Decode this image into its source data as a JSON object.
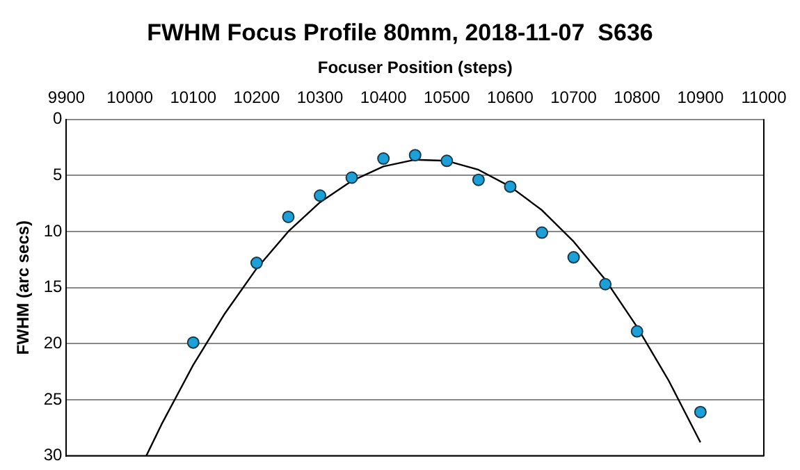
{
  "chart_data": {
    "type": "scatter",
    "title": "FWHM Focus Profile 80mm, 2018-11-07  S636",
    "xlabel": "Focuser Position (steps)",
    "ylabel": "FWHM (arc secs)",
    "xlim": [
      9900,
      11000
    ],
    "xticks": [
      9900,
      10000,
      10100,
      10200,
      10300,
      10400,
      10500,
      10600,
      10700,
      10800,
      10900,
      11000
    ],
    "ylim": [
      30,
      0
    ],
    "yticks": [
      0,
      5,
      10,
      15,
      20,
      25,
      30
    ],
    "grid": "y",
    "legend": false,
    "marker": "circle",
    "series": [
      {
        "color": "#1ca0d8",
        "x": [
          10100,
          10200,
          10250,
          10300,
          10350,
          10400,
          10450,
          10500,
          10550,
          10600,
          10650,
          10700,
          10750,
          10800,
          10900
        ],
        "values": [
          19.9,
          12.8,
          8.7,
          6.8,
          5.2,
          3.5,
          3.2,
          3.7,
          5.4,
          6.0,
          10.1,
          12.3,
          14.7,
          18.9,
          26.1
        ]
      },
      {
        "type": "line",
        "color": "#000000",
        "marker": "none",
        "line_style": "solid",
        "x": [
          10026,
          10050,
          10100,
          10150,
          10200,
          10250,
          10300,
          10350,
          10400,
          10450,
          10500,
          10550,
          10600,
          10650,
          10700,
          10750,
          10800,
          10850,
          10900
        ],
        "values": [
          30,
          27.2,
          21.9,
          17.3,
          13.3,
          10.0,
          7.4,
          5.5,
          4.2,
          3.6,
          3.7,
          4.5,
          6.0,
          8.1,
          10.9,
          14.3,
          18.5,
          23.3,
          28.8
        ]
      }
    ]
  }
}
